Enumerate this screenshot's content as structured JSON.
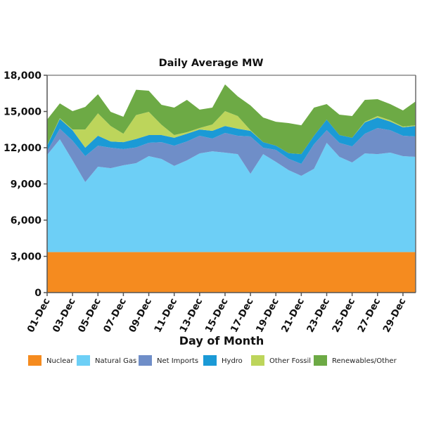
{
  "chart_data": {
    "type": "area",
    "stacked": true,
    "title": "Daily Average MW",
    "xlabel": "Day of Month",
    "ylabel": "",
    "ylim": [
      0,
      18000
    ],
    "yticks": [
      0,
      3000,
      6000,
      9000,
      12000,
      15000,
      18000
    ],
    "ytick_labels": [
      "0",
      "3,000",
      "6,000",
      "9,000",
      "12,000",
      "15,000",
      "18,000"
    ],
    "x": [
      "01-Dec",
      "02-Dec",
      "03-Dec",
      "04-Dec",
      "05-Dec",
      "06-Dec",
      "07-Dec",
      "08-Dec",
      "09-Dec",
      "10-Dec",
      "11-Dec",
      "12-Dec",
      "13-Dec",
      "14-Dec",
      "15-Dec",
      "16-Dec",
      "17-Dec",
      "18-Dec",
      "19-Dec",
      "20-Dec",
      "21-Dec",
      "22-Dec",
      "23-Dec",
      "24-Dec",
      "25-Dec",
      "26-Dec",
      "27-Dec",
      "28-Dec",
      "29-Dec",
      "30-Dec"
    ],
    "xtick_labels": [
      "01-Dec",
      "03-Dec",
      "05-Dec",
      "07-Dec",
      "09-Dec",
      "11-Dec",
      "13-Dec",
      "15-Dec",
      "17-Dec",
      "19-Dec",
      "21-Dec",
      "23-Dec",
      "25-Dec",
      "27-Dec",
      "29-Dec"
    ],
    "legend_position": "bottom",
    "grid": false,
    "series": [
      {
        "name": "Nuclear",
        "color": "#f58b1f",
        "values": [
          3360,
          3360,
          3360,
          3360,
          3360,
          3360,
          3360,
          3360,
          3360,
          3360,
          3360,
          3360,
          3360,
          3360,
          3360,
          3360,
          3360,
          3360,
          3360,
          3360,
          3360,
          3360,
          3360,
          3360,
          3360,
          3360,
          3360,
          3360,
          3360,
          3360
        ]
      },
      {
        "name": "Natural Gas",
        "color": "#6dcff6",
        "values": [
          8040,
          9340,
          7590,
          5790,
          7070,
          6940,
          7180,
          7360,
          7940,
          7710,
          7130,
          7590,
          8170,
          8340,
          8230,
          8110,
          6480,
          8110,
          7470,
          6780,
          6310,
          6890,
          9040,
          7880,
          7420,
          8170,
          8110,
          8230,
          7940,
          7880
        ]
      },
      {
        "name": "Net Imports",
        "color": "#6f8ec8",
        "values": [
          300,
          870,
          1630,
          2150,
          1740,
          1700,
          1340,
          1300,
          1110,
          1390,
          1680,
          1570,
          1460,
          1060,
          1630,
          1520,
          3090,
          530,
          990,
          940,
          990,
          2040,
          1050,
          1160,
          1330,
          1630,
          2160,
          1860,
          1690,
          1690
        ]
      },
      {
        "name": "Hydro",
        "color": "#1b9ad6",
        "values": [
          470,
          820,
          870,
          700,
          820,
          520,
          580,
          700,
          640,
          590,
          650,
          640,
          520,
          640,
          580,
          580,
          470,
          460,
          350,
          470,
          810,
          700,
          880,
          650,
          710,
          940,
          870,
          710,
          700,
          870
        ]
      },
      {
        "name": "Other Fossil",
        "color": "#bdd55b",
        "values": [
          30,
          60,
          60,
          1510,
          1860,
          1280,
          700,
          1980,
          1920,
          850,
          230,
          120,
          120,
          520,
          1230,
          1050,
          50,
          0,
          0,
          0,
          0,
          0,
          0,
          0,
          0,
          50,
          120,
          110,
          60,
          60
        ]
      },
      {
        "name": "Renewables/Other",
        "color": "#6daa45",
        "values": [
          2130,
          1220,
          1520,
          1870,
          1580,
          1170,
          1400,
          2100,
          1750,
          1650,
          2270,
          2680,
          1520,
          1400,
          2210,
          1630,
          2050,
          2040,
          1980,
          2490,
          2390,
          2330,
          1280,
          1690,
          1800,
          1810,
          1400,
          1340,
          1340,
          1980
        ]
      }
    ]
  }
}
